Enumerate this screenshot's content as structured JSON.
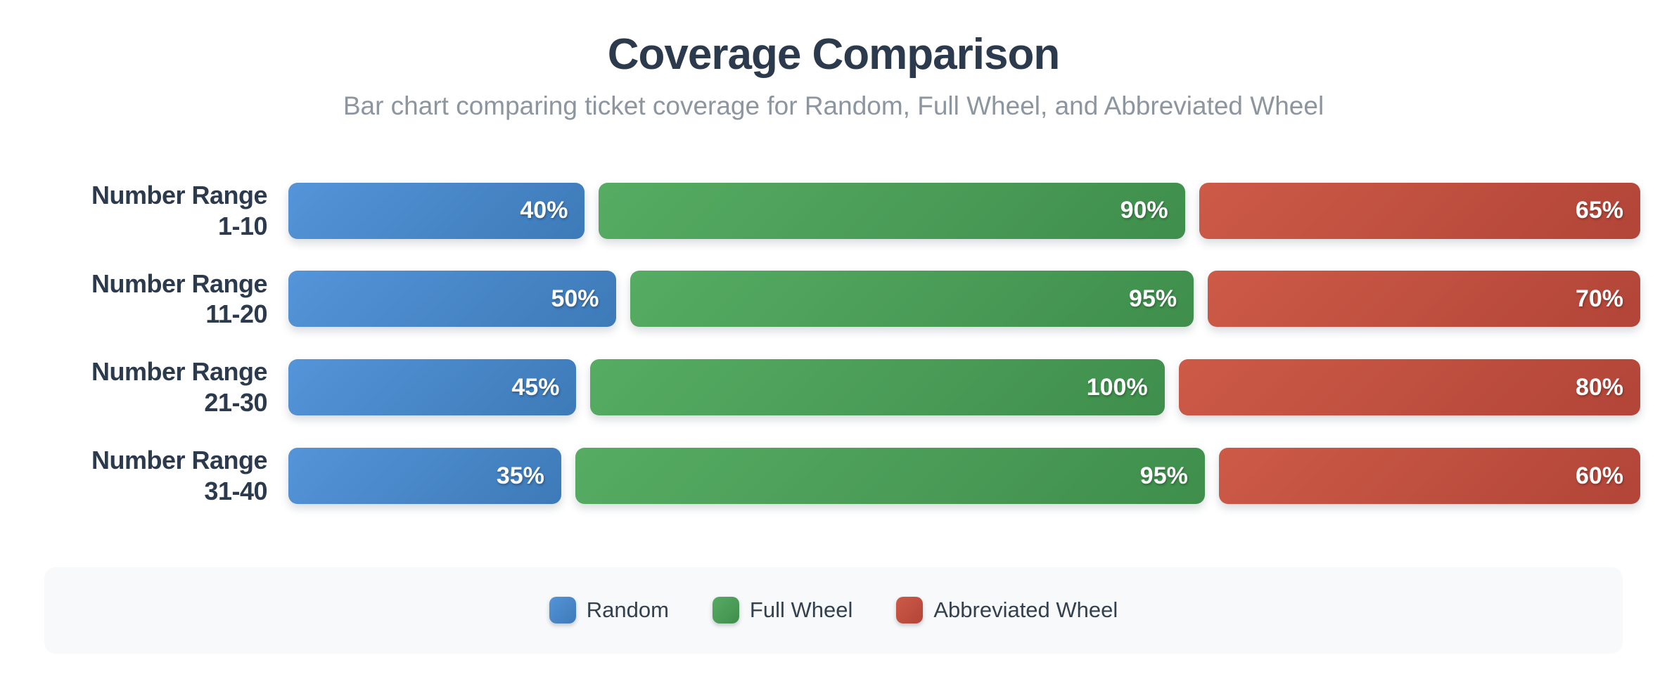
{
  "page": {
    "title": "Coverage Comparison",
    "subtitle": "Bar chart comparing ticket coverage for Random, Full Wheel, and Abbreviated Wheel"
  },
  "chart_data": {
    "type": "bar",
    "orientation": "horizontal",
    "unit": "%",
    "title": "Coverage Comparison",
    "subtitle": "Bar chart comparing ticket coverage for Random, Full Wheel, and Abbreviated Wheel",
    "categories": [
      {
        "line1": "Number Range",
        "line2": "1-10"
      },
      {
        "line1": "Number Range",
        "line2": "11-20"
      },
      {
        "line1": "Number Range",
        "line2": "21-30"
      },
      {
        "line1": "Number Range",
        "line2": "31-40"
      }
    ],
    "series": [
      {
        "name": "Random",
        "color_from": "#5494d8",
        "color_to": "#3d7ab8",
        "values": [
          40,
          50,
          45,
          35
        ],
        "display_values": [
          "40%",
          "50%",
          "45%",
          "35%"
        ]
      },
      {
        "name": "Full Wheel",
        "color_from": "#56ac63",
        "color_to": "#3f8e4c",
        "values": [
          90,
          95,
          100,
          95
        ],
        "display_values": [
          "90%",
          "95%",
          "100%",
          "95%"
        ]
      },
      {
        "name": "Abbreviated Wheel",
        "color_from": "#cd5a47",
        "color_to": "#b24538",
        "values": [
          65,
          70,
          80,
          60
        ],
        "display_values": [
          "65%",
          "70%",
          "80%",
          "60%"
        ]
      }
    ],
    "layout": {
      "bar_width_mode": "proportional-to-row-sum",
      "legend_position": "bottom",
      "grid": false,
      "value_labels": "inside-end"
    }
  }
}
